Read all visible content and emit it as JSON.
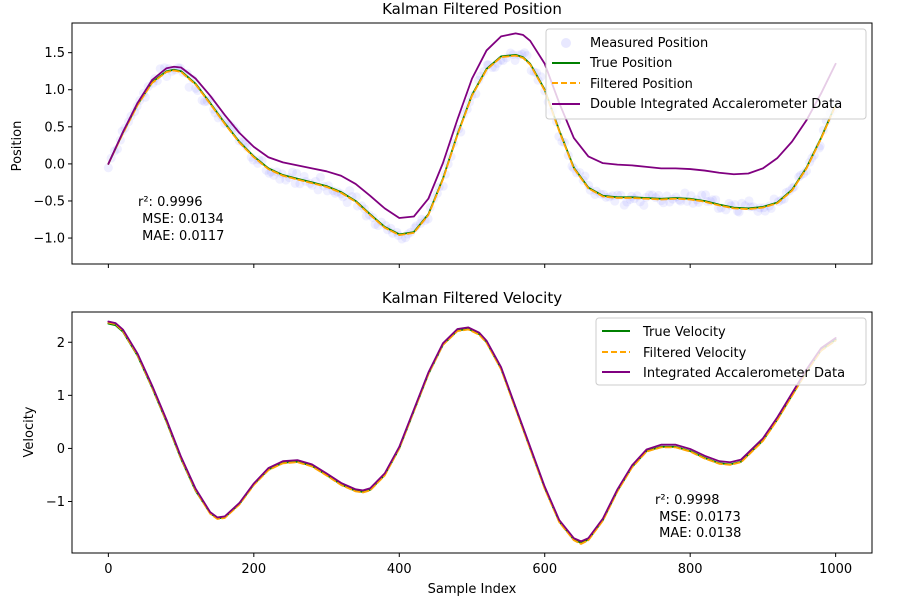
{
  "chart_data": [
    {
      "type": "line",
      "title": "Kalman Filtered Position",
      "xlabel": "",
      "ylabel": "Position",
      "xlim": [
        -50,
        1050
      ],
      "ylim": [
        -1.35,
        1.9
      ],
      "xticks": [
        0,
        200,
        400,
        600,
        800,
        1000
      ],
      "xtick_labels_visible": false,
      "yticks": [
        -1.0,
        -0.5,
        0.0,
        0.5,
        1.0,
        1.5
      ],
      "ytick_labels": [
        "−1.0",
        "−0.5",
        "0.0",
        "0.5",
        "1.0",
        "1.5"
      ],
      "legend_position": "top-right",
      "series": [
        {
          "name": "Measured Position",
          "style": "scatter",
          "color": "#6666ff",
          "x": [
            0,
            20,
            40,
            60,
            80,
            90,
            100,
            120,
            140,
            160,
            180,
            200,
            220,
            240,
            260,
            280,
            300,
            320,
            340,
            360,
            380,
            400,
            420,
            440,
            460,
            480,
            500,
            520,
            540,
            560,
            570,
            580,
            600,
            620,
            640,
            660,
            680,
            700,
            720,
            740,
            760,
            780,
            800,
            820,
            840,
            860,
            880,
            900,
            920,
            940,
            960,
            980,
            1000
          ]
        },
        {
          "name": "True Position",
          "style": "solid",
          "color": "#008000",
          "x": [
            0,
            20,
            40,
            60,
            80,
            90,
            100,
            120,
            140,
            160,
            180,
            200,
            220,
            240,
            260,
            280,
            300,
            320,
            340,
            360,
            380,
            400,
            420,
            440,
            460,
            480,
            500,
            520,
            540,
            560,
            570,
            580,
            600,
            620,
            640,
            660,
            680,
            700,
            720,
            740,
            760,
            780,
            800,
            820,
            840,
            860,
            880,
            900,
            920,
            940,
            960,
            980,
            1000
          ],
          "y": [
            0.0,
            0.42,
            0.8,
            1.1,
            1.25,
            1.27,
            1.25,
            1.08,
            0.82,
            0.55,
            0.3,
            0.1,
            -0.06,
            -0.15,
            -0.2,
            -0.25,
            -0.3,
            -0.38,
            -0.5,
            -0.68,
            -0.85,
            -0.95,
            -0.92,
            -0.68,
            -0.2,
            0.4,
            0.93,
            1.28,
            1.45,
            1.47,
            1.44,
            1.35,
            1.0,
            0.45,
            -0.05,
            -0.32,
            -0.43,
            -0.45,
            -0.45,
            -0.46,
            -0.47,
            -0.46,
            -0.47,
            -0.5,
            -0.55,
            -0.59,
            -0.6,
            -0.58,
            -0.52,
            -0.35,
            -0.05,
            0.35,
            0.8
          ]
        },
        {
          "name": "Filtered Position",
          "style": "dashed",
          "color": "#ffa500",
          "x": [
            0,
            20,
            40,
            60,
            80,
            90,
            100,
            120,
            140,
            160,
            180,
            200,
            220,
            240,
            260,
            280,
            300,
            320,
            340,
            360,
            380,
            400,
            420,
            440,
            460,
            480,
            500,
            520,
            540,
            560,
            570,
            580,
            600,
            620,
            640,
            660,
            680,
            700,
            720,
            740,
            760,
            780,
            800,
            820,
            840,
            860,
            880,
            900,
            920,
            940,
            960,
            980,
            1000
          ],
          "y": [
            0.0,
            0.41,
            0.79,
            1.09,
            1.24,
            1.26,
            1.24,
            1.07,
            0.81,
            0.54,
            0.29,
            0.09,
            -0.07,
            -0.16,
            -0.21,
            -0.26,
            -0.31,
            -0.39,
            -0.51,
            -0.69,
            -0.86,
            -0.96,
            -0.93,
            -0.69,
            -0.21,
            0.39,
            0.92,
            1.27,
            1.44,
            1.46,
            1.43,
            1.34,
            0.99,
            0.44,
            -0.06,
            -0.33,
            -0.44,
            -0.46,
            -0.46,
            -0.47,
            -0.48,
            -0.47,
            -0.48,
            -0.51,
            -0.56,
            -0.6,
            -0.61,
            -0.59,
            -0.53,
            -0.36,
            -0.06,
            0.34,
            0.79
          ]
        },
        {
          "name": "Double Integrated Accalerometer Data",
          "style": "solid",
          "color": "#800080",
          "x": [
            0,
            20,
            40,
            60,
            80,
            90,
            100,
            120,
            140,
            160,
            180,
            200,
            220,
            240,
            260,
            280,
            300,
            320,
            340,
            360,
            380,
            400,
            420,
            440,
            460,
            480,
            500,
            520,
            540,
            560,
            570,
            580,
            600,
            620,
            640,
            660,
            680,
            700,
            720,
            740,
            760,
            780,
            800,
            820,
            840,
            860,
            880,
            900,
            920,
            940,
            960,
            980,
            1000
          ],
          "y": [
            0.0,
            0.43,
            0.82,
            1.13,
            1.29,
            1.31,
            1.3,
            1.15,
            0.92,
            0.66,
            0.42,
            0.23,
            0.09,
            0.02,
            -0.02,
            -0.06,
            -0.1,
            -0.16,
            -0.27,
            -0.43,
            -0.6,
            -0.73,
            -0.71,
            -0.47,
            0.01,
            0.6,
            1.15,
            1.53,
            1.72,
            1.76,
            1.74,
            1.66,
            1.35,
            0.82,
            0.35,
            0.1,
            0.01,
            -0.01,
            -0.02,
            -0.04,
            -0.06,
            -0.06,
            -0.07,
            -0.09,
            -0.12,
            -0.14,
            -0.13,
            -0.06,
            0.08,
            0.3,
            0.59,
            0.95,
            1.35
          ]
        }
      ],
      "annotation": {
        "lines": [
          "r²: 0.9996",
          " MSE: 0.0134",
          " MAE: 0.0117"
        ],
        "r2": 0.9996,
        "mse": 0.0134,
        "mae": 0.0117
      }
    },
    {
      "type": "line",
      "title": "Kalman Filtered Velocity",
      "xlabel": "Sample Index",
      "ylabel": "Velocity",
      "xlim": [
        -50,
        1050
      ],
      "ylim": [
        -1.97,
        2.57
      ],
      "xticks": [
        0,
        200,
        400,
        600,
        800,
        1000
      ],
      "xtick_labels": [
        "0",
        "200",
        "400",
        "600",
        "800",
        "1000"
      ],
      "yticks": [
        -1,
        0,
        1,
        2
      ],
      "ytick_labels": [
        "−1",
        "0",
        "1",
        "2"
      ],
      "legend_position": "top-right",
      "series": [
        {
          "name": "True Velocity",
          "style": "solid",
          "color": "#008000",
          "x": [
            0,
            10,
            20,
            40,
            60,
            80,
            100,
            120,
            140,
            150,
            160,
            180,
            200,
            220,
            240,
            260,
            280,
            300,
            320,
            340,
            350,
            360,
            380,
            400,
            420,
            440,
            460,
            480,
            495,
            510,
            520,
            540,
            560,
            580,
            600,
            620,
            640,
            650,
            660,
            680,
            700,
            720,
            740,
            760,
            780,
            800,
            820,
            840,
            855,
            870,
            900,
            920,
            940,
            960,
            980,
            1000
          ],
          "y": [
            2.35,
            2.32,
            2.2,
            1.75,
            1.15,
            0.5,
            -0.2,
            -0.8,
            -1.22,
            -1.32,
            -1.3,
            -1.05,
            -0.68,
            -0.4,
            -0.27,
            -0.25,
            -0.33,
            -0.5,
            -0.68,
            -0.8,
            -0.82,
            -0.78,
            -0.5,
            0.0,
            0.7,
            1.4,
            1.95,
            2.22,
            2.25,
            2.15,
            2.0,
            1.5,
            0.75,
            0.0,
            -0.75,
            -1.38,
            -1.72,
            -1.78,
            -1.72,
            -1.35,
            -0.8,
            -0.35,
            -0.05,
            0.03,
            0.03,
            -0.05,
            -0.18,
            -0.28,
            -0.3,
            -0.25,
            0.15,
            0.55,
            1.0,
            1.45,
            1.85,
            2.05
          ]
        },
        {
          "name": "Filtered Velocity",
          "style": "dashed",
          "color": "#ffa500",
          "x": [
            0,
            10,
            20,
            40,
            60,
            80,
            100,
            120,
            140,
            150,
            160,
            180,
            200,
            220,
            240,
            260,
            280,
            300,
            320,
            340,
            350,
            360,
            380,
            400,
            420,
            440,
            460,
            480,
            495,
            510,
            520,
            540,
            560,
            580,
            600,
            620,
            640,
            650,
            660,
            680,
            700,
            720,
            740,
            760,
            780,
            800,
            820,
            840,
            855,
            870,
            900,
            920,
            940,
            960,
            980,
            1000
          ],
          "y": [
            2.37,
            2.34,
            2.21,
            1.76,
            1.16,
            0.51,
            -0.19,
            -0.79,
            -1.23,
            -1.33,
            -1.31,
            -1.06,
            -0.69,
            -0.41,
            -0.28,
            -0.26,
            -0.34,
            -0.51,
            -0.69,
            -0.81,
            -0.83,
            -0.79,
            -0.51,
            0.0,
            0.7,
            1.4,
            1.95,
            2.21,
            2.24,
            2.14,
            1.99,
            1.49,
            0.74,
            -0.01,
            -0.76,
            -1.39,
            -1.73,
            -1.8,
            -1.73,
            -1.36,
            -0.81,
            -0.36,
            -0.06,
            0.02,
            0.02,
            -0.06,
            -0.19,
            -0.29,
            -0.31,
            -0.26,
            0.14,
            0.54,
            0.99,
            1.44,
            1.84,
            2.03
          ]
        },
        {
          "name": "Integrated Accalerometer Data",
          "style": "solid",
          "color": "#800080",
          "x": [
            0,
            10,
            20,
            40,
            60,
            80,
            100,
            120,
            140,
            150,
            160,
            180,
            200,
            220,
            240,
            260,
            280,
            300,
            320,
            340,
            350,
            360,
            380,
            400,
            420,
            440,
            460,
            480,
            495,
            510,
            520,
            540,
            560,
            580,
            600,
            620,
            640,
            650,
            660,
            680,
            700,
            720,
            740,
            760,
            780,
            800,
            820,
            840,
            855,
            870,
            900,
            920,
            940,
            960,
            980,
            1000
          ],
          "y": [
            2.39,
            2.36,
            2.24,
            1.79,
            1.19,
            0.54,
            -0.16,
            -0.76,
            -1.2,
            -1.3,
            -1.28,
            -1.03,
            -0.66,
            -0.37,
            -0.24,
            -0.22,
            -0.3,
            -0.47,
            -0.65,
            -0.77,
            -0.79,
            -0.75,
            -0.47,
            0.03,
            0.73,
            1.43,
            1.98,
            2.25,
            2.28,
            2.18,
            2.03,
            1.53,
            0.78,
            0.03,
            -0.72,
            -1.35,
            -1.69,
            -1.75,
            -1.69,
            -1.32,
            -0.77,
            -0.32,
            -0.02,
            0.07,
            0.07,
            -0.01,
            -0.14,
            -0.24,
            -0.26,
            -0.21,
            0.19,
            0.59,
            1.04,
            1.49,
            1.89,
            2.08
          ]
        }
      ],
      "annotation": {
        "lines": [
          "r²: 0.9998",
          " MSE: 0.0173",
          " MAE: 0.0138"
        ],
        "r2": 0.9998,
        "mse": 0.0173,
        "mae": 0.0138
      }
    }
  ]
}
